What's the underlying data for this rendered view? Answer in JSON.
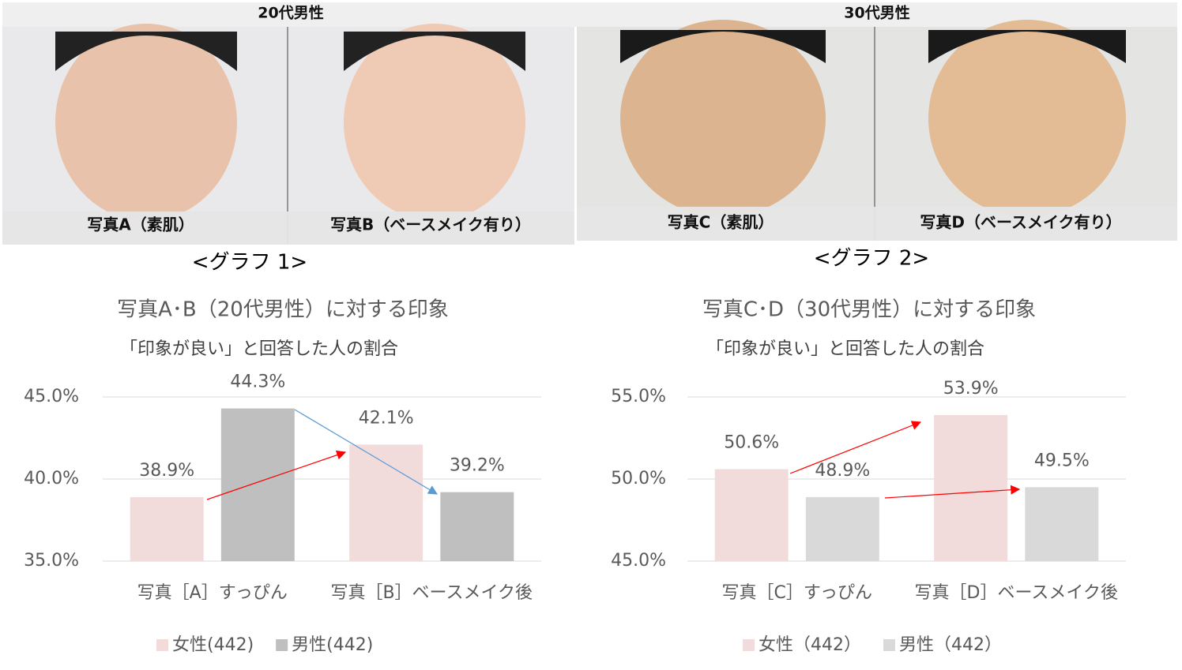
{
  "photos": {
    "groups": [
      {
        "label": "20代男性",
        "captions": [
          "写真A（素肌）",
          "写真B（ベースメイク有り）"
        ]
      },
      {
        "label": "30代男性",
        "captions": [
          "写真C（素肌）",
          "写真D（ベースメイク有り）"
        ]
      }
    ]
  },
  "graph_labels": [
    "<グラフ 1>",
    "<グラフ 2>"
  ],
  "chart_data": [
    {
      "type": "bar",
      "title": "写真A･B（20代男性）に対する印象",
      "subtitle": "「印象が良い」と回答した人の割合",
      "categories": [
        "写真［A］すっぴん",
        "写真［B］ベースメイク後"
      ],
      "series": [
        {
          "name": "女性(442)",
          "color": "#f2dcdb",
          "values": [
            38.9,
            42.1
          ],
          "value_labels": [
            "38.9%",
            "42.1%"
          ]
        },
        {
          "name": "男性(442)",
          "color": "#bfbfbf",
          "values": [
            44.3,
            39.2
          ],
          "value_labels": [
            "44.3%",
            "39.2%"
          ]
        }
      ],
      "ylim": [
        35,
        45
      ],
      "yticks": [
        {
          "value": 35,
          "label": "35.0%"
        },
        {
          "value": 40,
          "label": "40.0%"
        },
        {
          "value": 45,
          "label": "45.0%"
        }
      ],
      "grid": true,
      "legend": "bottom"
    },
    {
      "type": "bar",
      "title": "写真C･D（30代男性）に対する印象",
      "subtitle": "「印象が良い」と回答した人の割合",
      "categories": [
        "写真［C］すっぴん",
        "写真［D］ベースメイク後"
      ],
      "series": [
        {
          "name": "女性（442）",
          "color": "#f2dcdb",
          "values": [
            50.6,
            53.9
          ],
          "value_labels": [
            "50.6%",
            "53.9%"
          ]
        },
        {
          "name": "男性（442）",
          "color": "#d9d9d9",
          "values": [
            48.9,
            49.5
          ],
          "value_labels": [
            "48.9%",
            "49.5%"
          ]
        }
      ],
      "ylim": [
        45,
        55
      ],
      "yticks": [
        {
          "value": 45,
          "label": "45.0%"
        },
        {
          "value": 50,
          "label": "50.0%"
        },
        {
          "value": 55,
          "label": "55.0%"
        }
      ],
      "grid": true,
      "legend": "bottom"
    }
  ]
}
